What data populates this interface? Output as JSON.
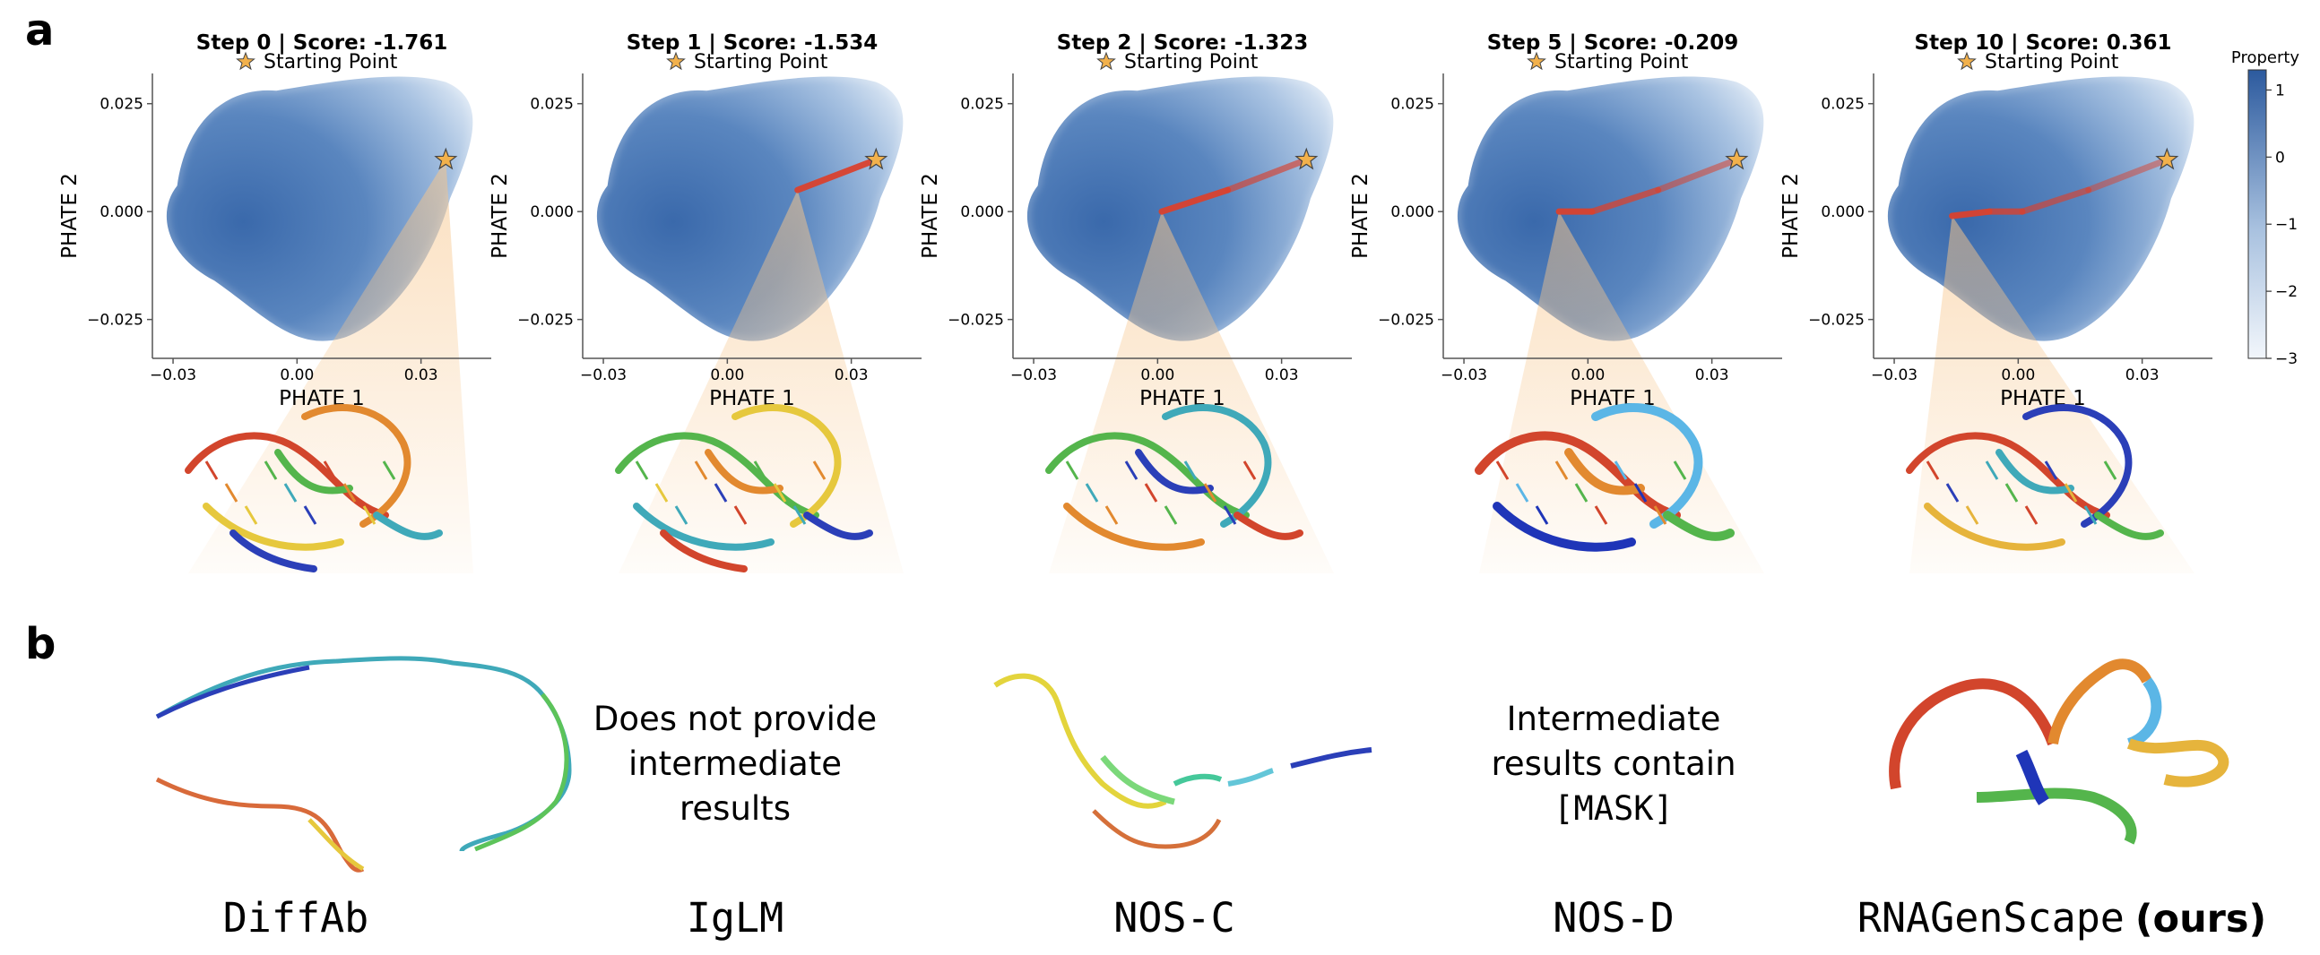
{
  "panel_labels": [
    "a",
    "b"
  ],
  "panels": [
    {
      "title": "Step 0 | Score: -1.761",
      "legend": "Starting Point",
      "xlabel": "PHATE 1",
      "ylabel": "PHATE 2",
      "path": [
        [
          0.036,
          0.012
        ]
      ]
    },
    {
      "title": "Step 1 | Score: -1.534",
      "legend": "Starting Point",
      "xlabel": "PHATE 1",
      "ylabel": "PHATE 2",
      "path": [
        [
          0.036,
          0.012
        ],
        [
          0.017,
          0.005
        ]
      ]
    },
    {
      "title": "Step 2 | Score: -1.323",
      "legend": "Starting Point",
      "xlabel": "PHATE 1",
      "ylabel": "PHATE 2",
      "path": [
        [
          0.036,
          0.012
        ],
        [
          0.017,
          0.005
        ],
        [
          0.001,
          0.0
        ]
      ]
    },
    {
      "title": "Step 5 | Score: -0.209",
      "legend": "Starting Point",
      "xlabel": "PHATE 1",
      "ylabel": "PHATE 2",
      "path": [
        [
          0.036,
          0.012
        ],
        [
          0.017,
          0.005
        ],
        [
          0.001,
          0.0
        ],
        [
          -0.007,
          0.0
        ]
      ]
    },
    {
      "title": "Step 10 | Score: 0.361",
      "legend": "Starting Point",
      "xlabel": "PHATE 1",
      "ylabel": "PHATE 2",
      "path": [
        [
          0.036,
          0.012
        ],
        [
          0.017,
          0.005
        ],
        [
          0.001,
          0.0
        ],
        [
          -0.007,
          0.0
        ],
        [
          -0.016,
          -0.001
        ]
      ]
    }
  ],
  "axes": {
    "xticks": [
      -0.03,
      0.0,
      0.03
    ],
    "xtick_labels": [
      "−0.03",
      "0.00",
      "0.03"
    ],
    "yticks": [
      0.025,
      0.0,
      -0.025
    ],
    "ytick_labels": [
      "0.025",
      "0.000",
      "−0.025"
    ],
    "xlim": [
      -0.035,
      0.047
    ],
    "ylim": [
      -0.034,
      0.032
    ]
  },
  "colorbar": {
    "title": "Property",
    "ticks": [
      1,
      0,
      -1,
      -2,
      -3
    ],
    "tick_labels": [
      "1",
      "0",
      "−1",
      "−2",
      "−3"
    ],
    "range": [
      -3,
      1.3
    ],
    "color_low": "#f2f6fb",
    "color_high": "#2c5a9e"
  },
  "methods_b": [
    {
      "name": "DiffAb",
      "kind": "structure"
    },
    {
      "name": "IgLM",
      "kind": "text",
      "message": [
        "Does not provide",
        "intermediate",
        "results"
      ]
    },
    {
      "name": "NOS-C",
      "kind": "structure"
    },
    {
      "name": "NOS-D",
      "kind": "text",
      "message": [
        "Intermediate",
        "results contain",
        "[MASK]"
      ]
    },
    {
      "name": "RNAGenScape",
      "suffix": "(ours)",
      "kind": "structure"
    }
  ],
  "colors": {
    "star": "#f2b14c",
    "path": "#d9412e",
    "cone": "#f7c58a",
    "map_light": "#e8eff8",
    "map_dark": "#3e6fb0"
  },
  "chart_data": [
    {
      "type": "scatter",
      "title": "Step 0 | Score: -1.761",
      "xlabel": "PHATE 1",
      "ylabel": "PHATE 2",
      "xlim": [
        -0.035,
        0.047
      ],
      "ylim": [
        -0.034,
        0.032
      ],
      "series": [
        {
          "name": "Starting Point",
          "x": [
            0.036
          ],
          "y": [
            0.012
          ]
        }
      ]
    },
    {
      "type": "line",
      "title": "Step 1 | Score: -1.534",
      "xlabel": "PHATE 1",
      "ylabel": "PHATE 2",
      "xlim": [
        -0.035,
        0.047
      ],
      "ylim": [
        -0.034,
        0.032
      ],
      "series": [
        {
          "name": "Starting Point",
          "x": [
            0.036
          ],
          "y": [
            0.012
          ]
        }
      ]
    },
    {
      "type": "line",
      "title": "Step 2 | Score: -1.323",
      "xlabel": "PHATE 1",
      "ylabel": "PHATE 2",
      "xlim": [
        -0.035,
        0.047
      ],
      "ylim": [
        -0.034,
        0.032
      ],
      "series": [
        {
          "name": "Starting Point",
          "x": [
            0.036
          ],
          "y": [
            0.012
          ]
        }
      ]
    },
    {
      "type": "line",
      "title": "Step 5 | Score: -0.209",
      "xlabel": "PHATE 1",
      "ylabel": "PHATE 2",
      "xlim": [
        -0.035,
        0.047
      ],
      "ylim": [
        -0.034,
        0.032
      ],
      "series": [
        {
          "name": "Starting Point",
          "x": [
            0.036
          ],
          "y": [
            0.012
          ]
        }
      ]
    },
    {
      "type": "line",
      "title": "Step 10 | Score: 0.361",
      "xlabel": "PHATE 1",
      "ylabel": "PHATE 2",
      "xlim": [
        -0.035,
        0.047
      ],
      "ylim": [
        -0.034,
        0.032
      ],
      "series": [
        {
          "name": "Starting Point",
          "x": [
            0.036
          ],
          "y": [
            0.012
          ]
        }
      ]
    }
  ]
}
